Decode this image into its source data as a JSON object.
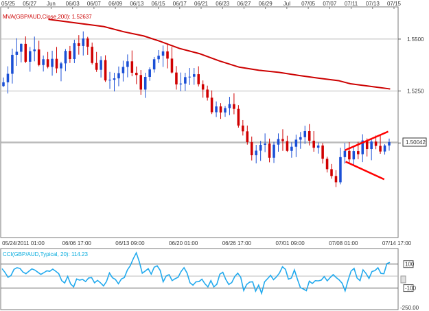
{
  "chart_data": [
    {
      "type": "candlestick",
      "indicator_label": "MVA(GBP/AUD,Close,200): 1.52637",
      "top_dates": [
        "05/25",
        "05/27",
        "Jun",
        "06/03",
        "06/07",
        "06/09",
        "06/13",
        "06/15",
        "06/17",
        "06/21",
        "06/23",
        "06/27",
        "06/29",
        "Jul",
        "07/05",
        "07/07",
        "07/11",
        "07/13",
        "07/15"
      ],
      "bottom_times": [
        "05/24/2011 01:00",
        "06/06 17:00",
        "06/13 09:00",
        "06/20 01:00",
        "06/26 17:00",
        "07/01 09:00",
        "07/08 01:00",
        "07/14 17:00"
      ],
      "y_ticks": [
        1.55,
        1.525,
        1.5
      ],
      "y_tick_labels": [
        "1.5500",
        "1.5250"
      ],
      "ylim": [
        1.4545,
        1.5655
      ],
      "last_price": 1.50042,
      "last_price_label": "1.50042",
      "moving_average": [
        [
          0.12,
          1.5595
        ],
        [
          0.2,
          1.5575
        ],
        [
          0.26,
          1.556
        ],
        [
          0.31,
          1.5535
        ],
        [
          0.36,
          1.5515
        ],
        [
          0.4,
          1.549
        ],
        [
          0.45,
          1.5455
        ],
        [
          0.5,
          1.543
        ],
        [
          0.55,
          1.5395
        ],
        [
          0.6,
          1.5365
        ],
        [
          0.65,
          1.535
        ],
        [
          0.7,
          1.534
        ],
        [
          0.75,
          1.5325
        ],
        [
          0.8,
          1.5312
        ],
        [
          0.85,
          1.53
        ],
        [
          0.88,
          1.5285
        ],
        [
          0.92,
          1.5275
        ],
        [
          0.98,
          1.526
        ]
      ],
      "pennant": {
        "upper": [
          [
            0.866,
            1.4965
          ],
          [
            0.975,
            1.5055
          ]
        ],
        "lower": [
          [
            0.868,
            1.491
          ],
          [
            0.965,
            1.4825
          ]
        ]
      },
      "candles": [
        {
          "o": 1.5274,
          "h": 1.5315,
          "l": 1.5269,
          "c": 1.5292
        },
        {
          "o": 1.5292,
          "h": 1.5369,
          "l": 1.5238,
          "c": 1.5333
        },
        {
          "o": 1.5333,
          "h": 1.5454,
          "l": 1.5286,
          "c": 1.5424
        },
        {
          "o": 1.5424,
          "h": 1.5504,
          "l": 1.5371,
          "c": 1.5439
        },
        {
          "o": 1.5439,
          "h": 1.5479,
          "l": 1.5388,
          "c": 1.5477
        },
        {
          "o": 1.5477,
          "h": 1.5513,
          "l": 1.5384,
          "c": 1.5391
        },
        {
          "o": 1.5391,
          "h": 1.5462,
          "l": 1.5343,
          "c": 1.5442
        },
        {
          "o": 1.5442,
          "h": 1.5512,
          "l": 1.5393,
          "c": 1.545
        },
        {
          "o": 1.545,
          "h": 1.5492,
          "l": 1.5369,
          "c": 1.5375
        },
        {
          "o": 1.5375,
          "h": 1.5421,
          "l": 1.5344,
          "c": 1.5403
        },
        {
          "o": 1.5403,
          "h": 1.5438,
          "l": 1.5359,
          "c": 1.5366
        },
        {
          "o": 1.5366,
          "h": 1.5444,
          "l": 1.5324,
          "c": 1.5405
        },
        {
          "o": 1.5405,
          "h": 1.5462,
          "l": 1.5337,
          "c": 1.5359
        },
        {
          "o": 1.5359,
          "h": 1.5391,
          "l": 1.5297,
          "c": 1.5383
        },
        {
          "o": 1.5383,
          "h": 1.5452,
          "l": 1.5346,
          "c": 1.5443
        },
        {
          "o": 1.5443,
          "h": 1.5467,
          "l": 1.5385,
          "c": 1.5404
        },
        {
          "o": 1.5404,
          "h": 1.5497,
          "l": 1.5384,
          "c": 1.548
        },
        {
          "o": 1.548,
          "h": 1.5519,
          "l": 1.5425,
          "c": 1.5467
        },
        {
          "o": 1.5467,
          "h": 1.5537,
          "l": 1.5421,
          "c": 1.5503
        },
        {
          "o": 1.5503,
          "h": 1.5511,
          "l": 1.5424,
          "c": 1.5463
        },
        {
          "o": 1.5463,
          "h": 1.5483,
          "l": 1.5378,
          "c": 1.5385
        },
        {
          "o": 1.5385,
          "h": 1.5438,
          "l": 1.5342,
          "c": 1.5352
        },
        {
          "o": 1.5352,
          "h": 1.5417,
          "l": 1.5315,
          "c": 1.5399
        },
        {
          "o": 1.5399,
          "h": 1.5422,
          "l": 1.5294,
          "c": 1.5301
        },
        {
          "o": 1.5301,
          "h": 1.5342,
          "l": 1.526,
          "c": 1.5304
        },
        {
          "o": 1.5304,
          "h": 1.5338,
          "l": 1.5248,
          "c": 1.5311
        },
        {
          "o": 1.5311,
          "h": 1.5368,
          "l": 1.5273,
          "c": 1.5336
        },
        {
          "o": 1.5336,
          "h": 1.5396,
          "l": 1.5296,
          "c": 1.5366
        },
        {
          "o": 1.5366,
          "h": 1.5426,
          "l": 1.5316,
          "c": 1.5393
        },
        {
          "o": 1.5393,
          "h": 1.5445,
          "l": 1.5321,
          "c": 1.5338
        },
        {
          "o": 1.5338,
          "h": 1.5368,
          "l": 1.5283,
          "c": 1.5327
        },
        {
          "o": 1.5327,
          "h": 1.5351,
          "l": 1.5232,
          "c": 1.5257
        },
        {
          "o": 1.5257,
          "h": 1.5338,
          "l": 1.5217,
          "c": 1.5318
        },
        {
          "o": 1.5318,
          "h": 1.5364,
          "l": 1.5299,
          "c": 1.5354
        },
        {
          "o": 1.5354,
          "h": 1.5414,
          "l": 1.5339,
          "c": 1.5403
        },
        {
          "o": 1.5403,
          "h": 1.5447,
          "l": 1.5385,
          "c": 1.542
        },
        {
          "o": 1.542,
          "h": 1.5469,
          "l": 1.5366,
          "c": 1.5441
        },
        {
          "o": 1.5441,
          "h": 1.5475,
          "l": 1.5359,
          "c": 1.5406
        },
        {
          "o": 1.5406,
          "h": 1.5462,
          "l": 1.5334,
          "c": 1.5339
        },
        {
          "o": 1.5339,
          "h": 1.537,
          "l": 1.5257,
          "c": 1.5282
        },
        {
          "o": 1.5282,
          "h": 1.5339,
          "l": 1.5249,
          "c": 1.5286
        },
        {
          "o": 1.5286,
          "h": 1.5338,
          "l": 1.5251,
          "c": 1.5317
        },
        {
          "o": 1.5317,
          "h": 1.5361,
          "l": 1.5279,
          "c": 1.5319
        },
        {
          "o": 1.5319,
          "h": 1.5361,
          "l": 1.528,
          "c": 1.5331
        },
        {
          "o": 1.5331,
          "h": 1.5369,
          "l": 1.5272,
          "c": 1.5283
        },
        {
          "o": 1.5283,
          "h": 1.5301,
          "l": 1.5218,
          "c": 1.5257
        },
        {
          "o": 1.5257,
          "h": 1.5276,
          "l": 1.5204,
          "c": 1.5218
        },
        {
          "o": 1.5218,
          "h": 1.5253,
          "l": 1.5139,
          "c": 1.5148
        },
        {
          "o": 1.5148,
          "h": 1.52,
          "l": 1.5125,
          "c": 1.5176
        },
        {
          "o": 1.5176,
          "h": 1.5192,
          "l": 1.5116,
          "c": 1.5147
        },
        {
          "o": 1.5147,
          "h": 1.5178,
          "l": 1.5126,
          "c": 1.5168
        },
        {
          "o": 1.5168,
          "h": 1.5222,
          "l": 1.5134,
          "c": 1.5187
        },
        {
          "o": 1.5187,
          "h": 1.5239,
          "l": 1.5138,
          "c": 1.5164
        },
        {
          "o": 1.5164,
          "h": 1.5182,
          "l": 1.5074,
          "c": 1.5084
        },
        {
          "o": 1.5084,
          "h": 1.511,
          "l": 1.5036,
          "c": 1.5056
        },
        {
          "o": 1.5056,
          "h": 1.5084,
          "l": 1.4992,
          "c": 1.5004
        },
        {
          "o": 1.5004,
          "h": 1.5031,
          "l": 1.4916,
          "c": 1.4941
        },
        {
          "o": 1.4941,
          "h": 1.4991,
          "l": 1.4902,
          "c": 1.4963
        },
        {
          "o": 1.4963,
          "h": 1.501,
          "l": 1.4914,
          "c": 1.4991
        },
        {
          "o": 1.4991,
          "h": 1.5046,
          "l": 1.4956,
          "c": 1.4997
        },
        {
          "o": 1.4997,
          "h": 1.5021,
          "l": 1.4907,
          "c": 1.4929
        },
        {
          "o": 1.4929,
          "h": 1.5006,
          "l": 1.4904,
          "c": 1.4992
        },
        {
          "o": 1.4992,
          "h": 1.5046,
          "l": 1.4958,
          "c": 1.5019
        },
        {
          "o": 1.5019,
          "h": 1.5066,
          "l": 1.4962,
          "c": 1.5009
        },
        {
          "o": 1.5009,
          "h": 1.5035,
          "l": 1.4957,
          "c": 1.4962
        },
        {
          "o": 1.4962,
          "h": 1.5003,
          "l": 1.4929,
          "c": 1.4982
        },
        {
          "o": 1.4982,
          "h": 1.504,
          "l": 1.4932,
          "c": 1.5016
        },
        {
          "o": 1.5016,
          "h": 1.5053,
          "l": 1.4972,
          "c": 1.5028
        },
        {
          "o": 1.5028,
          "h": 1.5083,
          "l": 1.4995,
          "c": 1.5057
        },
        {
          "o": 1.5057,
          "h": 1.5091,
          "l": 1.4988,
          "c": 1.5011
        },
        {
          "o": 1.5011,
          "h": 1.5057,
          "l": 1.4958,
          "c": 1.4977
        },
        {
          "o": 1.4977,
          "h": 1.5002,
          "l": 1.4949,
          "c": 1.4988
        },
        {
          "o": 1.4988,
          "h": 1.5,
          "l": 1.4901,
          "c": 1.4924
        },
        {
          "o": 1.4924,
          "h": 1.4934,
          "l": 1.4858,
          "c": 1.4874
        },
        {
          "o": 1.4874,
          "h": 1.4899,
          "l": 1.4828,
          "c": 1.4841
        },
        {
          "o": 1.4841,
          "h": 1.4869,
          "l": 1.4788,
          "c": 1.4811
        },
        {
          "o": 1.4811,
          "h": 1.4977,
          "l": 1.4801,
          "c": 1.4932
        },
        {
          "o": 1.4932,
          "h": 1.5,
          "l": 1.4901,
          "c": 1.4962
        },
        {
          "o": 1.4962,
          "h": 1.5004,
          "l": 1.4902,
          "c": 1.4921
        },
        {
          "o": 1.4921,
          "h": 1.4982,
          "l": 1.4889,
          "c": 1.4961
        },
        {
          "o": 1.4961,
          "h": 1.5006,
          "l": 1.4922,
          "c": 1.4946
        },
        {
          "o": 1.4946,
          "h": 1.5042,
          "l": 1.4908,
          "c": 1.5012
        },
        {
          "o": 1.5012,
          "h": 1.5022,
          "l": 1.4935,
          "c": 1.4971
        },
        {
          "o": 1.4971,
          "h": 1.5018,
          "l": 1.4917,
          "c": 1.5007
        },
        {
          "o": 1.5007,
          "h": 1.5036,
          "l": 1.497,
          "c": 1.4986
        },
        {
          "o": 1.4986,
          "h": 1.5036,
          "l": 1.4948,
          "c": 1.4959
        },
        {
          "o": 1.4959,
          "h": 1.4994,
          "l": 1.4944,
          "c": 1.4988
        },
        {
          "o": 1.4988,
          "h": 1.5021,
          "l": 1.4963,
          "c": 1.5004
        }
      ]
    },
    {
      "type": "line",
      "indicator_label": "CCI(GBP/AUD,Typical, 20): 114.23",
      "y_ticks": [
        100,
        -100
      ],
      "y_tick_labels": [
        "100",
        "-100"
      ],
      "ylim": [
        -280,
        230
      ],
      "bottom_label": "-250.00",
      "series": [
        {
          "values": [
            62,
            30,
            -10,
            5,
            56,
            70,
            64,
            34,
            20,
            40,
            60,
            50,
            32,
            14,
            28,
            44,
            40,
            58,
            40,
            20,
            -38,
            -58,
            -3,
            -66,
            -90,
            -24,
            -34,
            -28,
            -46,
            -16,
            -12,
            -56,
            -36,
            -56,
            -82,
            -46,
            26,
            -14,
            -28,
            -64,
            -24,
            -12,
            50,
            88,
            146,
            194,
            120,
            24,
            42,
            62,
            16,
            74,
            86,
            48,
            -48,
            0,
            12,
            -38,
            -22,
            -10,
            38,
            70,
            26,
            -56,
            -76,
            -48,
            -46,
            -26,
            -64,
            -90,
            -38,
            -90,
            -68,
            16,
            32,
            -28,
            -70,
            -54,
            -4,
            24,
            -10,
            -120,
            -70,
            -50,
            -48,
            -126,
            -76,
            -144,
            -48,
            -22,
            6,
            -30,
            -6,
            26,
            78,
            56,
            -26,
            -16,
            52,
            -26,
            -96,
            -108,
            -122,
            -42,
            -62,
            -38,
            -40,
            -34,
            -4,
            -40,
            -12,
            12,
            -12,
            -32,
            -60,
            -124,
            -34,
            42,
            64,
            -16,
            -38,
            52,
            22,
            -20,
            38,
            46,
            70,
            22,
            20,
            104,
            114
          ]
        }
      ]
    }
  ]
}
